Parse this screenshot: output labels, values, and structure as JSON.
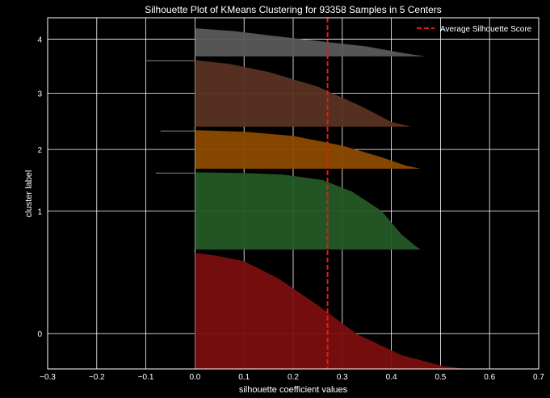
{
  "chart_data": {
    "type": "area",
    "title": "Silhouette Plot of KMeans Clustering for 93358 Samples in 5 Centers",
    "xlabel": "silhouette coefficient values",
    "ylabel": "cluster label",
    "xlim": [
      -0.3,
      0.7
    ],
    "x_ticks": [
      "−0.3",
      "−0.2",
      "−0.1",
      "0.0",
      "0.1",
      "0.2",
      "0.3",
      "0.4",
      "0.5",
      "0.6",
      "0.7"
    ],
    "y_tick_labels": [
      "0",
      "1",
      "2",
      "3",
      "4"
    ],
    "grid": true,
    "legend_position": "top-right",
    "average_silhouette_score": 0.27,
    "legend_label": "Average Silhouette Score",
    "colors": {
      "background": "#000000",
      "grid": "#ffffff",
      "average_line": "#e31a1c",
      "clusters": [
        "#7a0f0f",
        "#255926",
        "#8c4a00",
        "#5a3222",
        "#5a5a5a"
      ]
    },
    "clusters": [
      {
        "label": "0",
        "y_range": [
          0,
          0.33
        ],
        "profile": [
          [
            0.55,
            0.0
          ],
          [
            0.5,
            0.03
          ],
          [
            0.42,
            0.12
          ],
          [
            0.33,
            0.3
          ],
          [
            0.25,
            0.55
          ],
          [
            0.17,
            0.78
          ],
          [
            0.1,
            0.93
          ],
          [
            0.04,
            0.98
          ],
          [
            0.0,
            1.0
          ]
        ]
      },
      {
        "label": "1",
        "y_range": [
          0.34,
          0.56
        ],
        "profile": [
          [
            0.46,
            0.0
          ],
          [
            0.45,
            0.04
          ],
          [
            0.42,
            0.2
          ],
          [
            0.38,
            0.5
          ],
          [
            0.32,
            0.75
          ],
          [
            0.26,
            0.9
          ],
          [
            0.18,
            0.97
          ],
          [
            0.1,
            0.99
          ],
          [
            0.0,
            1.0
          ]
        ]
      },
      {
        "label": "2",
        "y_range": [
          0.57,
          0.68
        ],
        "profile": [
          [
            0.46,
            0.0
          ],
          [
            0.43,
            0.08
          ],
          [
            0.38,
            0.3
          ],
          [
            0.3,
            0.6
          ],
          [
            0.2,
            0.85
          ],
          [
            0.1,
            0.96
          ],
          [
            0.0,
            1.0
          ]
        ]
      },
      {
        "label": "3",
        "y_range": [
          0.69,
          0.88
        ],
        "profile": [
          [
            0.44,
            0.0
          ],
          [
            0.4,
            0.07
          ],
          [
            0.34,
            0.3
          ],
          [
            0.25,
            0.6
          ],
          [
            0.15,
            0.82
          ],
          [
            0.07,
            0.94
          ],
          [
            0.02,
            0.98
          ],
          [
            0.0,
            1.0
          ]
        ]
      },
      {
        "label": "4",
        "y_range": [
          0.89,
          0.97
        ],
        "profile": [
          [
            0.47,
            0.0
          ],
          [
            0.43,
            0.1
          ],
          [
            0.35,
            0.35
          ],
          [
            0.25,
            0.55
          ],
          [
            0.15,
            0.75
          ],
          [
            0.08,
            0.9
          ],
          [
            0.0,
            1.0
          ]
        ]
      }
    ],
    "negative_tails": [
      {
        "cluster": "1",
        "min_value": -0.08
      },
      {
        "cluster": "2",
        "min_value": -0.07
      },
      {
        "cluster": "3",
        "min_value": -0.1
      }
    ]
  }
}
